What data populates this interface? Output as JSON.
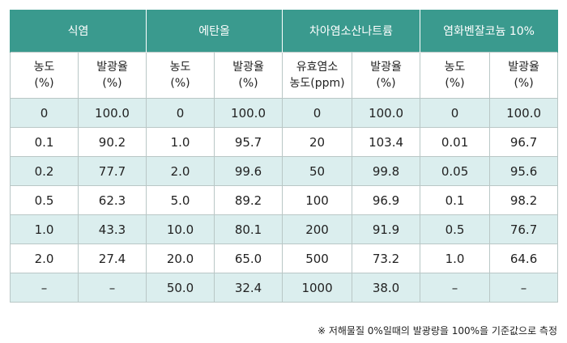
{
  "groups": [
    "식염",
    "에탄올",
    "차아염소산나트륨",
    "염화벤잘코늄 10%"
  ],
  "subheaders": [
    {
      "line1": "농도",
      "line2": "(%)"
    },
    {
      "line1": "발광율",
      "line2": "(%)"
    },
    {
      "line1": "농도",
      "line2": "(%)"
    },
    {
      "line1": "발광율",
      "line2": "(%)"
    },
    {
      "line1": "유효염소",
      "line2": "농도(ppm)"
    },
    {
      "line1": "발광율",
      "line2": "(%)"
    },
    {
      "line1": "농도",
      "line2": "(%)"
    },
    {
      "line1": "발광율",
      "line2": "(%)"
    }
  ],
  "rows": [
    [
      "0",
      "100.0",
      "0",
      "100.0",
      "0",
      "100.0",
      "0",
      "100.0"
    ],
    [
      "0.1",
      "90.2",
      "1.0",
      "95.7",
      "20",
      "103.4",
      "0.01",
      "96.7"
    ],
    [
      "0.2",
      "77.7",
      "2.0",
      "99.6",
      "50",
      "99.8",
      "0.05",
      "95.6"
    ],
    [
      "0.5",
      "62.3",
      "5.0",
      "89.2",
      "100",
      "96.9",
      "0.1",
      "98.2"
    ],
    [
      "1.0",
      "43.3",
      "10.0",
      "80.1",
      "200",
      "91.9",
      "0.5",
      "76.7"
    ],
    [
      "2.0",
      "27.4",
      "20.0",
      "65.0",
      "500",
      "73.2",
      "1.0",
      "64.6"
    ],
    [
      "–",
      "–",
      "50.0",
      "32.4",
      "1000",
      "38.0",
      "–",
      "–"
    ]
  ],
  "footnote": "※ 저해물질 0%일때의 발광량을 100%을 기준값으로 측정"
}
